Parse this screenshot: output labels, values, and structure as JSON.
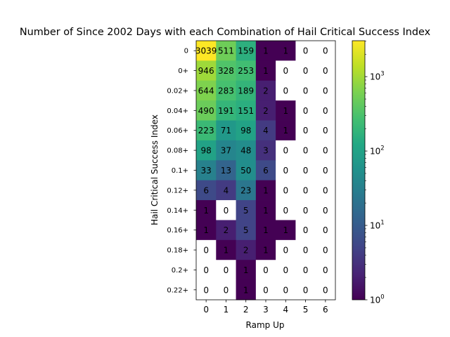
{
  "chart_data": {
    "type": "heatmap",
    "title": "Number of Since 2002 Days with each Combination of Hail Critical Success Index",
    "xlabel": "Ramp Up",
    "ylabel": "Hail Critical Success Index",
    "x_categories": [
      "0",
      "1",
      "2",
      "3",
      "4",
      "5",
      "6"
    ],
    "y_categories": [
      "0",
      "0+",
      "0.02+",
      "0.04+",
      "0.06+",
      "0.08+",
      "0.1+",
      "0.12+",
      "0.14+",
      "0.16+",
      "0.18+",
      "0.2+",
      "0.22+"
    ],
    "values": [
      [
        3039,
        511,
        159,
        1,
        1,
        0,
        0
      ],
      [
        946,
        328,
        253,
        1,
        0,
        0,
        0
      ],
      [
        644,
        283,
        189,
        2,
        0,
        0,
        0
      ],
      [
        490,
        191,
        151,
        2,
        1,
        0,
        0
      ],
      [
        223,
        71,
        98,
        4,
        1,
        0,
        0
      ],
      [
        98,
        37,
        48,
        3,
        0,
        0,
        0
      ],
      [
        33,
        13,
        50,
        6,
        0,
        0,
        0
      ],
      [
        6,
        4,
        23,
        1,
        0,
        0,
        0
      ],
      [
        1,
        0,
        5,
        1,
        0,
        0,
        0
      ],
      [
        1,
        2,
        5,
        1,
        1,
        0,
        0
      ],
      [
        0,
        1,
        2,
        1,
        0,
        0,
        0
      ],
      [
        0,
        0,
        1,
        0,
        0,
        0,
        0
      ],
      [
        0,
        0,
        1,
        0,
        0,
        0,
        0
      ]
    ],
    "colorbar": {
      "scale": "log",
      "range": [
        1,
        3039
      ],
      "colormap": "viridis",
      "tick_labels": [
        "10^0",
        "10^1",
        "10^2",
        "10^3"
      ]
    },
    "zero_color": "#ffffff"
  }
}
